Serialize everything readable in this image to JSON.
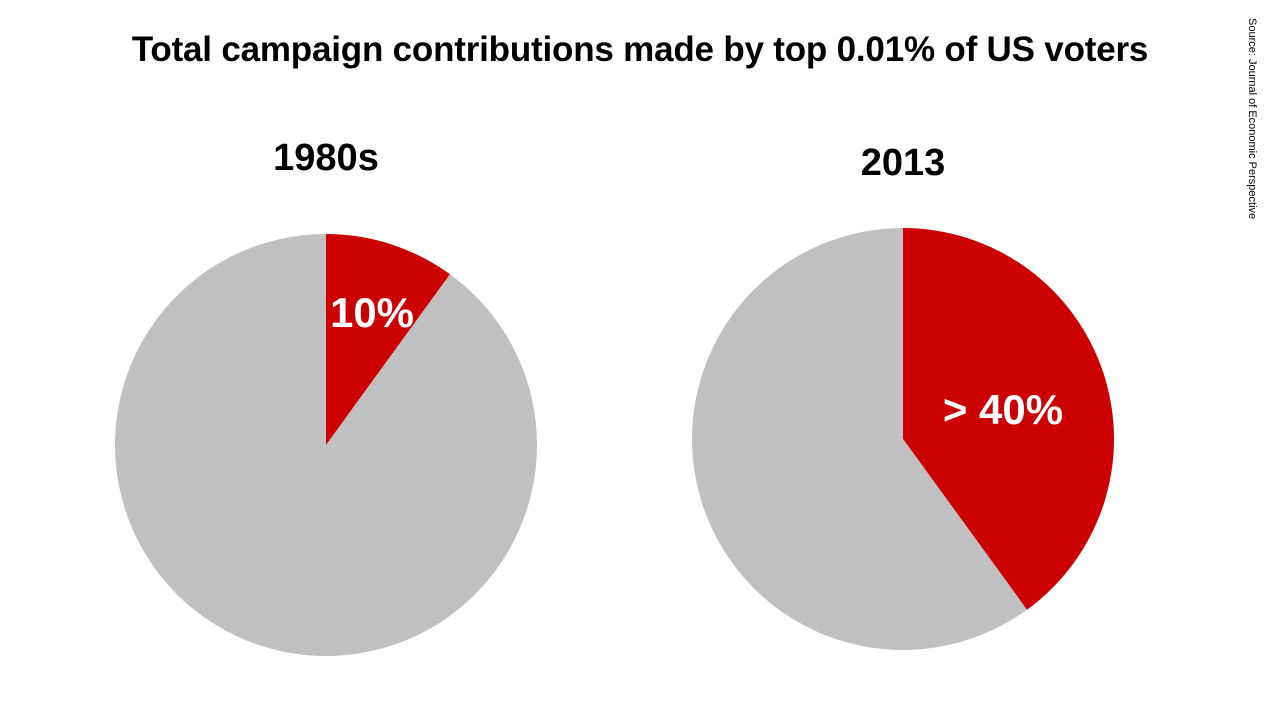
{
  "title": "Total campaign contributions made by top 0.01% of US voters",
  "source": "Source: Journal of Economic Perspective",
  "colors": {
    "highlight": "#cc0000",
    "rest": "#c0c0c0"
  },
  "chart_data": [
    {
      "type": "pie",
      "title": "1980s",
      "slices": [
        {
          "value": 10,
          "label": "10%",
          "color": "#cc0000"
        },
        {
          "value": 90,
          "label": "",
          "color": "#c0c0c0"
        }
      ]
    },
    {
      "type": "pie",
      "title": "2013",
      "slices": [
        {
          "value": 40,
          "label": "> 40%",
          "color": "#cc0000"
        },
        {
          "value": 60,
          "label": "",
          "color": "#c0c0c0"
        }
      ]
    }
  ]
}
